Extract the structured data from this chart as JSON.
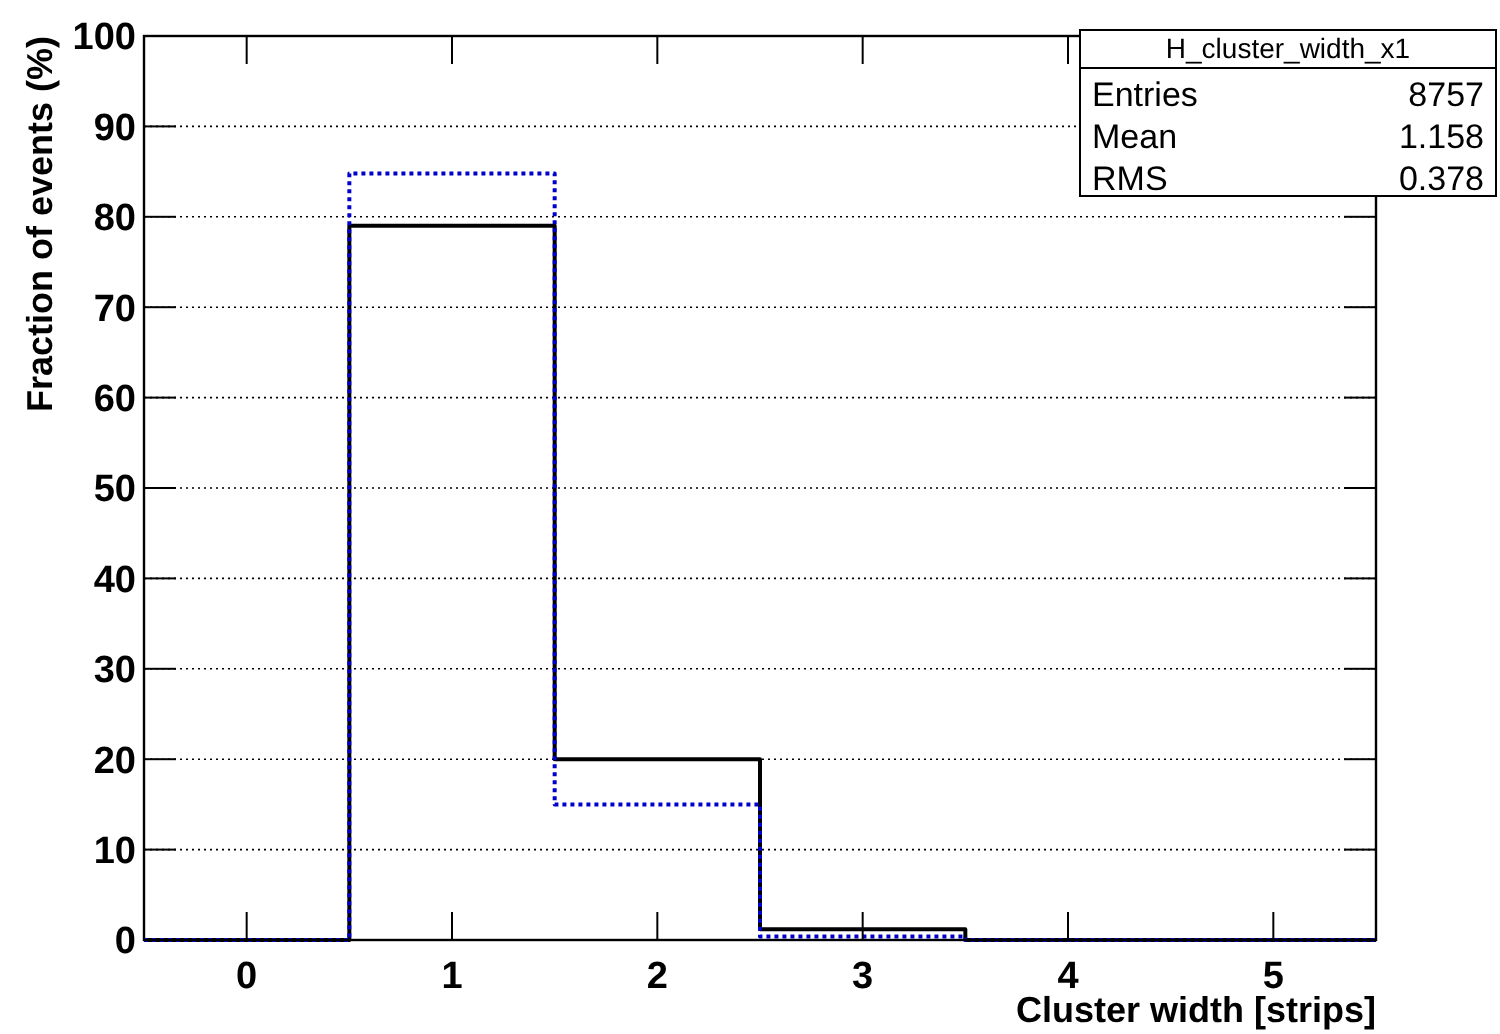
{
  "chart_data": {
    "type": "histogram",
    "xlabel": "Cluster width [strips]",
    "ylabel": "Fraction of events (%)",
    "bins": [
      -0.5,
      0.5,
      1.5,
      2.5,
      3.5,
      4.5,
      5.5
    ],
    "series": [
      {
        "color": "#000000",
        "line_style": "solid",
        "values": [
          0,
          79,
          20,
          1.2,
          0,
          0
        ]
      },
      {
        "color": "#0000cc",
        "line_style": "dotted",
        "values": [
          0,
          84.8,
          15,
          0.4,
          0,
          0
        ]
      }
    ],
    "xlim": [
      -0.5,
      5.5
    ],
    "xticks": [
      0,
      1,
      2,
      3,
      4,
      5
    ],
    "ylim": [
      0,
      100
    ],
    "yticks": [
      0,
      10,
      20,
      30,
      40,
      50,
      60,
      70,
      80,
      90,
      100
    ],
    "grid": "y",
    "annotations": [
      "H_cluster_width_x1",
      "Entries",
      "8757",
      "Mean",
      "1.158",
      "RMS",
      "0.378"
    ]
  }
}
